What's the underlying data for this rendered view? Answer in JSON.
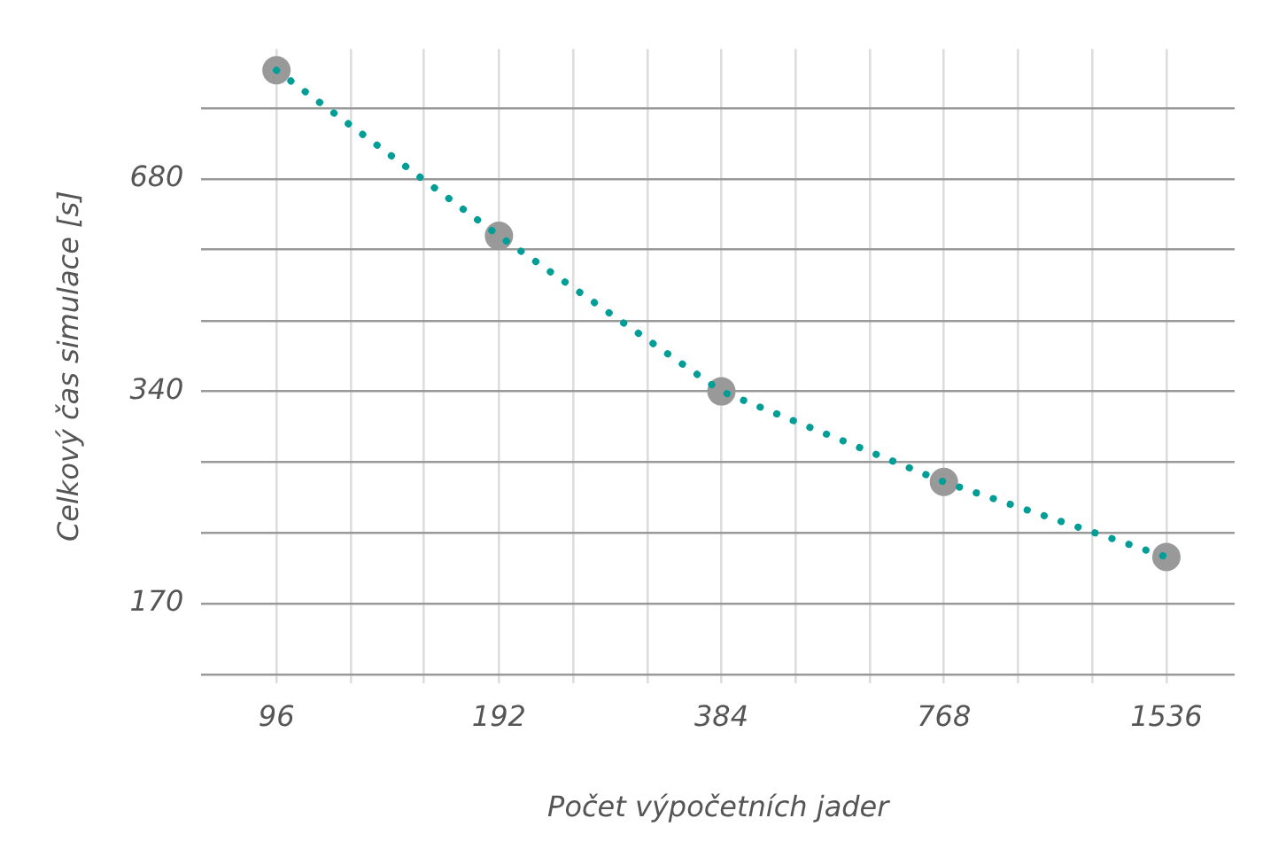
{
  "chart_data": {
    "type": "scatter",
    "xlabel": "Počet výpočetních jader",
    "ylabel": "Celkový čas simulace [s]",
    "log": "xy",
    "grid": true,
    "legend": false,
    "x": [
      96,
      192,
      384,
      768,
      1536
    ],
    "series": [
      {
        "type": "line",
        "color": "#009e96",
        "line_style": "dotted",
        "marker": "none",
        "values": [
          970,
          565,
          340,
          253,
          198
        ]
      },
      {
        "color": "#999999",
        "marker": "circle",
        "values": [
          970,
          565,
          340,
          253,
          198
        ]
      }
    ],
    "xlim": [
      76,
      1900
    ],
    "xticks": [
      96,
      {
        "value": 121,
        "label": null
      },
      {
        "value": 152,
        "label": null
      },
      192,
      {
        "value": 242,
        "label": null
      },
      {
        "value": 305,
        "label": null
      },
      384,
      {
        "value": 484,
        "label": null
      },
      {
        "value": 610,
        "label": null
      },
      768,
      {
        "value": 968,
        "label": null
      },
      {
        "value": 1219,
        "label": null
      },
      1536
    ],
    "ylim": [
      131,
      1040
    ],
    "yticks": [
      {
        "value": 135,
        "label": null
      },
      170,
      {
        "value": 214,
        "label": null
      },
      {
        "value": 270,
        "label": null
      },
      340,
      {
        "value": 428,
        "label": null
      },
      {
        "value": 540,
        "label": null
      },
      680,
      {
        "value": 857,
        "label": null
      }
    ]
  }
}
